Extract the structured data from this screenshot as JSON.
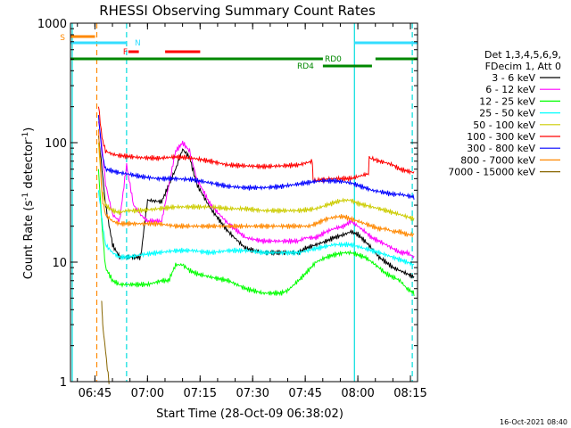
{
  "chart_data": {
    "type": "line",
    "title": "RHESSI Observing Summary Count Rates",
    "xlabel": "Start Time (28-Oct-09 06:38:02)",
    "ylabel_parts": [
      "Count Rate (s",
      "-1",
      " detector",
      "-1",
      ")"
    ],
    "y_scale": "log",
    "ylim": [
      1,
      1000
    ],
    "xlim_minutes": [
      0,
      99
    ],
    "x_ticks": [
      {
        "label": "06:45",
        "min": 6.97
      },
      {
        "label": "07:00",
        "min": 21.97
      },
      {
        "label": "07:15",
        "min": 36.97
      },
      {
        "label": "07:30",
        "min": 51.97
      },
      {
        "label": "07:45",
        "min": 66.97
      },
      {
        "label": "08:00",
        "min": 81.97
      },
      {
        "label": "08:15",
        "min": 96.97
      }
    ],
    "y_ticks": [
      {
        "label": "1",
        "value": 1
      },
      {
        "label": "10",
        "value": 10
      },
      {
        "label": "100",
        "value": 100
      },
      {
        "label": "1000",
        "value": 1000
      }
    ],
    "legend_header": [
      "Det 1,3,4,5,6,9,",
      "FDecim 1, Att 0"
    ],
    "series": [
      {
        "name": "3 - 6 keV",
        "color": "#000000",
        "x": [
          0.5,
          5,
          8,
          9,
          10,
          12,
          14,
          16,
          18,
          20,
          22,
          26,
          30,
          32,
          34,
          36,
          40,
          45,
          50,
          55,
          60,
          65,
          67,
          70,
          73,
          75,
          78,
          80,
          82,
          84,
          86,
          88,
          90,
          92,
          94,
          96,
          98
        ],
        "y": [
          null,
          null,
          115,
          60,
          30,
          14,
          11,
          11,
          11,
          11,
          33,
          32,
          60,
          88,
          75,
          45,
          28,
          18,
          13,
          12,
          12,
          12,
          13,
          14,
          15,
          16,
          17,
          18,
          17,
          15,
          13,
          11,
          10,
          9,
          8.5,
          8,
          7.5
        ]
      },
      {
        "name": "6 - 12 keV",
        "color": "#ff00ff",
        "x": [
          8,
          9,
          10,
          12,
          14,
          16,
          18,
          20,
          22,
          26,
          30,
          32,
          34,
          36,
          40,
          45,
          50,
          55,
          60,
          65,
          67,
          70,
          73,
          75,
          78,
          80,
          82,
          84,
          86,
          88,
          90,
          92,
          94,
          96,
          98
        ],
        "y": [
          150,
          90,
          45,
          25,
          22,
          65,
          30,
          25,
          22,
          22,
          85,
          100,
          85,
          50,
          30,
          21,
          16,
          15,
          15,
          15,
          16,
          16,
          18,
          19,
          20,
          22,
          20,
          18,
          16,
          15,
          14,
          13,
          12,
          12,
          11
        ]
      },
      {
        "name": "12 - 25 keV",
        "color": "#00ff00",
        "x": [
          8,
          9,
          10,
          12,
          14,
          16,
          18,
          20,
          22,
          26,
          28,
          30,
          32,
          34,
          36,
          40,
          45,
          50,
          55,
          60,
          62,
          65,
          67,
          70,
          73,
          75,
          78,
          80,
          82,
          84,
          86,
          88,
          90,
          92,
          94,
          96,
          98
        ],
        "y": [
          60,
          20,
          9,
          7,
          6.5,
          6.5,
          6.5,
          6.5,
          6.5,
          7,
          7,
          9.5,
          9.5,
          8.5,
          8,
          7.5,
          7,
          6,
          5.5,
          5.5,
          5.8,
          7,
          8,
          10,
          11,
          11.5,
          12,
          12,
          11.5,
          11,
          10,
          9,
          8,
          7.5,
          7,
          6,
          5.5
        ]
      },
      {
        "name": "25 - 50 keV",
        "color": "#00ffff",
        "x": [
          8,
          9,
          10,
          12,
          14,
          16,
          20,
          25,
          30,
          35,
          40,
          45,
          50,
          55,
          60,
          65,
          70,
          75,
          78,
          80,
          82,
          84,
          86,
          88,
          90,
          92,
          94,
          96,
          98
        ],
        "y": [
          40,
          22,
          14,
          12,
          11,
          11,
          11.5,
          12,
          12.5,
          12.5,
          12,
          12.5,
          12.5,
          12,
          12,
          12,
          13,
          14,
          14,
          14,
          13.5,
          13,
          12.5,
          12,
          11.5,
          11,
          10.5,
          10,
          9.5
        ]
      },
      {
        "name": "50 - 100 keV",
        "color": "#cccc00",
        "x": [
          8,
          9,
          10,
          12,
          14,
          16,
          20,
          25,
          30,
          35,
          40,
          45,
          50,
          55,
          60,
          65,
          68,
          70,
          73,
          76,
          78,
          80,
          82,
          84,
          86,
          88,
          90,
          92,
          94,
          96,
          98
        ],
        "y": [
          100,
          40,
          30,
          27,
          26,
          27,
          27,
          28,
          29,
          29,
          29,
          28,
          28,
          27,
          27,
          27,
          27.5,
          28,
          30,
          32,
          33,
          33,
          31,
          30,
          29,
          28,
          27,
          26,
          25,
          24,
          23
        ]
      },
      {
        "name": "100 - 300 keV",
        "color": "#ff0000",
        "x": [
          8,
          9,
          10,
          12,
          14,
          16,
          20,
          25,
          30,
          35,
          40,
          45,
          50,
          55,
          60,
          65,
          69,
          69.2,
          72,
          75,
          80,
          85,
          85.2,
          88,
          90,
          92,
          94,
          96,
          98
        ],
        "y": [
          200,
          110,
          85,
          80,
          78,
          77,
          75,
          74,
          76,
          74,
          70,
          65,
          64,
          63,
          64,
          65,
          70,
          48,
          49,
          50,
          50,
          55,
          75,
          70,
          68,
          65,
          60,
          58,
          56
        ]
      },
      {
        "name": "300 - 800 keV",
        "color": "#0000ff",
        "x": [
          8,
          9,
          10,
          12,
          14,
          16,
          20,
          25,
          30,
          35,
          40,
          45,
          50,
          55,
          60,
          65,
          69,
          72,
          75,
          78,
          80,
          82,
          84,
          86,
          88,
          90,
          92,
          94,
          96,
          98
        ],
        "y": [
          170,
          80,
          60,
          58,
          56,
          55,
          52,
          50,
          50,
          49,
          46,
          43,
          42,
          42,
          43,
          45,
          47,
          48,
          48,
          47,
          46,
          44,
          42,
          40,
          39,
          38,
          37,
          37,
          36,
          35
        ]
      },
      {
        "name": "800 - 7000 keV",
        "color": "#ff8800",
        "x": [
          8,
          9,
          10,
          12,
          14,
          16,
          20,
          25,
          30,
          35,
          40,
          45,
          50,
          55,
          60,
          65,
          68,
          70,
          73,
          76,
          78,
          80,
          82,
          84,
          86,
          88,
          90,
          92,
          94,
          96,
          98
        ],
        "y": [
          130,
          35,
          25,
          22,
          21,
          21,
          21,
          21,
          20,
          20,
          20,
          20,
          20,
          20,
          20,
          20,
          20,
          21,
          23,
          24,
          24,
          23,
          22,
          21,
          20,
          19,
          19,
          18,
          18,
          17,
          17
        ]
      },
      {
        "name": "7000 - 15000 keV",
        "color": "#886600",
        "x": [
          8.8,
          9,
          9.2,
          9.5,
          10,
          10.5,
          11
        ],
        "y": [
          5,
          4,
          3,
          2.5,
          1.8,
          1.3,
          1
        ]
      }
    ],
    "bars": [
      {
        "label": "S",
        "color": "#ff8800",
        "row": "S",
        "segments": [
          [
            0,
            7
          ]
        ]
      },
      {
        "label": "N",
        "color": "#33ddff",
        "row": "N",
        "segments": [
          [
            0,
            16
          ],
          [
            81,
            99
          ]
        ]
      },
      {
        "label": "F",
        "color": "#ff0000",
        "row": "F",
        "segments": [
          [
            16.5,
            19.5
          ],
          [
            27,
            37
          ]
        ]
      },
      {
        "label": "RD0",
        "color": "#008800",
        "row": "RD0",
        "segments": [
          [
            0,
            72
          ],
          [
            87,
            99
          ]
        ]
      },
      {
        "label": "RD4",
        "color": "#008800",
        "row": "RD4",
        "segments": [
          [
            72,
            86
          ]
        ]
      }
    ],
    "vlines": [
      {
        "min": 0.5,
        "color": "#00dddd",
        "style": "solid"
      },
      {
        "min": 7.5,
        "color": "#ff8800",
        "style": "dashed"
      },
      {
        "min": 16,
        "color": "#00dddd",
        "style": "dashed"
      },
      {
        "min": 81,
        "color": "#00dddd",
        "style": "solid"
      },
      {
        "min": 97.5,
        "color": "#00dddd",
        "style": "dashed"
      }
    ],
    "footer_stamp": "16-Oct-2021 08:40"
  }
}
